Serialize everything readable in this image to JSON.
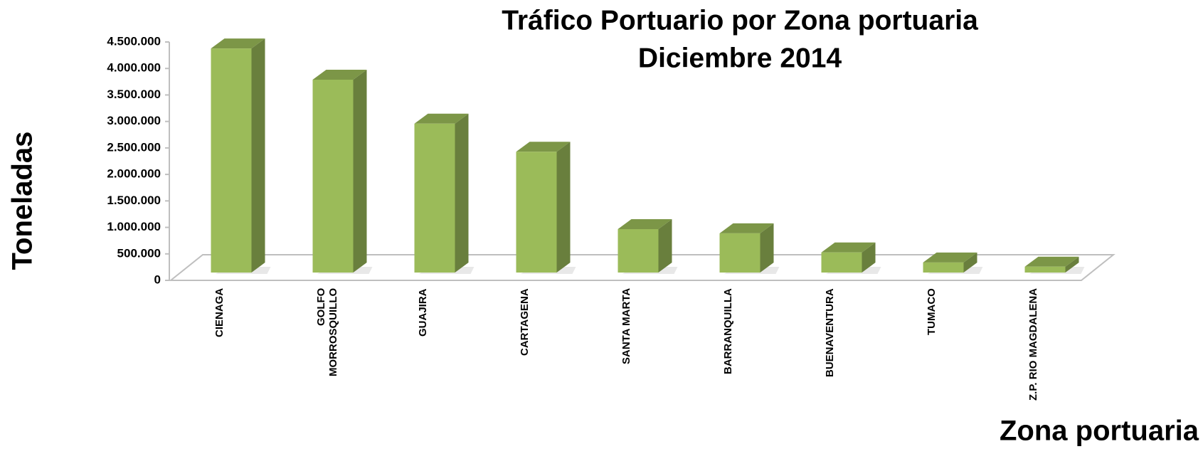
{
  "chart_data": {
    "type": "bar3d",
    "title": "Tráfico Portuario por Zona portuaria",
    "subtitle": "Diciembre 2014",
    "y_label": "Toneladas",
    "x_label": "Zona portuaria",
    "categories": [
      "CIENAGA",
      "GOLFO MORROSQUILLO",
      "GUAJIRA",
      "CARTAGENA",
      "SANTA MARTA",
      "BARRANQUILLA",
      "BUENAVENTURA",
      "TUMACO",
      "Z.P. RIO MAGDALENA"
    ],
    "values": [
      4230000,
      3640000,
      2810000,
      2280000,
      820000,
      740000,
      380000,
      190000,
      110000
    ],
    "color": "#9bbb59",
    "ylim": [
      0,
      4500000
    ],
    "yticks": [
      0,
      {
        "value": 500000,
        "label": "500.000"
      },
      {
        "value": 1000000,
        "label": "1.000.000"
      },
      {
        "value": 1500000,
        "label": "1.500.000"
      },
      {
        "value": 2000000,
        "label": "2.000.000"
      },
      {
        "value": 2500000,
        "label": "2.500.000"
      },
      {
        "value": 3000000,
        "label": "3.000.000"
      },
      {
        "value": 3500000,
        "label": "3.500.000"
      },
      {
        "value": 4000000,
        "label": "4.000.000"
      },
      {
        "value": 4500000,
        "label": "4.500.000"
      }
    ]
  }
}
